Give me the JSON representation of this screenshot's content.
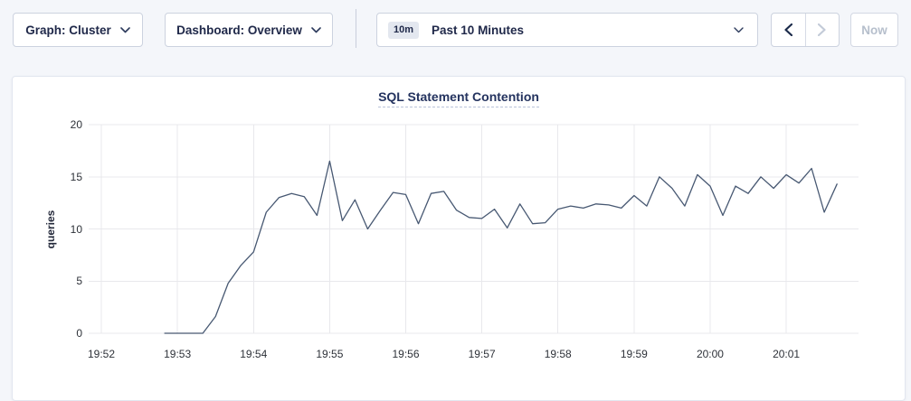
{
  "toolbar": {
    "graph_dropdown": {
      "label": "Graph: Cluster"
    },
    "dashboard_dropdown": {
      "label": "Dashboard: Overview"
    },
    "time_picker": {
      "badge": "10m",
      "label": "Past 10 Minutes"
    },
    "back_button": {
      "enabled": true
    },
    "forward_button": {
      "enabled": false
    },
    "now_label": "Now"
  },
  "colors": {
    "line": "#475872",
    "title_navy": "#24335f",
    "navy_text": "#20294a",
    "disabled_gray": "#b6bfcc",
    "grid": "#e8e8ec",
    "page_bg": "#f4f6fa"
  },
  "chart_data": {
    "type": "line",
    "title": "SQL Statement Contention",
    "xlabel": "",
    "ylabel": "queries",
    "ylim": [
      0,
      20
    ],
    "y_ticks": [
      0,
      5,
      10,
      15,
      20
    ],
    "x_ticks": [
      "19:52",
      "19:53",
      "19:54",
      "19:55",
      "19:56",
      "19:57",
      "19:58",
      "19:59",
      "20:00",
      "20:01"
    ],
    "x_domain": [
      "19:51:50",
      "20:01:57"
    ],
    "grid": true,
    "legend_position": "none",
    "series": [
      {
        "name": "queries",
        "color": "#475872",
        "x": [
          "19:52:50",
          "19:53:00",
          "19:53:10",
          "19:53:20",
          "19:53:30",
          "19:53:40",
          "19:53:50",
          "19:54:00",
          "19:54:10",
          "19:54:20",
          "19:54:30",
          "19:54:40",
          "19:54:50",
          "19:55:00",
          "19:55:10",
          "19:55:20",
          "19:55:30",
          "19:55:40",
          "19:55:50",
          "19:56:00",
          "19:56:10",
          "19:56:20",
          "19:56:30",
          "19:56:40",
          "19:56:50",
          "19:57:00",
          "19:57:10",
          "19:57:20",
          "19:57:30",
          "19:57:40",
          "19:57:50",
          "19:58:00",
          "19:58:10",
          "19:58:20",
          "19:58:30",
          "19:58:40",
          "19:58:50",
          "19:59:00",
          "19:59:10",
          "19:59:20",
          "19:59:30",
          "19:59:40",
          "19:59:50",
          "20:00:00",
          "20:00:10",
          "20:00:20",
          "20:00:30",
          "20:00:40",
          "20:00:50",
          "20:01:00",
          "20:01:10",
          "20:01:20",
          "20:01:30",
          "20:01:40"
        ],
        "values": [
          0,
          0,
          0,
          0,
          1.6,
          4.8,
          6.5,
          7.8,
          11.6,
          13.0,
          13.4,
          13.1,
          11.3,
          16.5,
          10.8,
          12.8,
          10.0,
          11.8,
          13.5,
          13.3,
          10.5,
          13.4,
          13.6,
          11.8,
          11.1,
          11.0,
          11.9,
          10.1,
          12.4,
          10.5,
          10.6,
          11.9,
          12.2,
          12.0,
          12.4,
          12.3,
          12.0,
          13.2,
          12.2,
          15.0,
          13.9,
          12.2,
          15.2,
          14.1,
          11.3,
          14.1,
          13.4,
          15.0,
          13.9,
          15.2,
          14.4,
          15.8,
          11.6,
          14.3
        ]
      }
    ]
  }
}
